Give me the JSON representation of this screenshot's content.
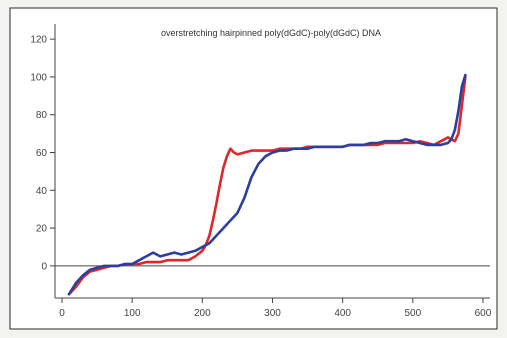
{
  "chart_data": {
    "type": "line",
    "title": "overstretching hairpinned poly(dGdC)-poly(dGdC) DNA",
    "xlabel": "",
    "ylabel": "",
    "xlim": [
      -10,
      610
    ],
    "ylim": [
      -17,
      128
    ],
    "x_ticks": [
      0,
      100,
      200,
      300,
      400,
      500,
      600
    ],
    "y_ticks": [
      0,
      20,
      40,
      60,
      80,
      100,
      120
    ],
    "x_tick_labels": [
      "0",
      "100",
      "200",
      "300",
      "400",
      "500",
      "600"
    ],
    "y_tick_labels": [
      "0",
      "20",
      "40",
      "60",
      "80",
      "100",
      "120"
    ],
    "reference_line_y": 0,
    "grid": false,
    "legend": "none",
    "series": [
      {
        "color": "#e0262a",
        "x": [
          10,
          20,
          30,
          40,
          50,
          60,
          70,
          80,
          90,
          100,
          110,
          120,
          130,
          140,
          150,
          160,
          170,
          180,
          190,
          200,
          205,
          210,
          215,
          220,
          225,
          230,
          235,
          240,
          245,
          250,
          260,
          270,
          280,
          290,
          300,
          310,
          320,
          330,
          340,
          350,
          360,
          370,
          380,
          390,
          400,
          410,
          420,
          430,
          440,
          450,
          460,
          470,
          480,
          490,
          500,
          510,
          520,
          530,
          540,
          545,
          550,
          555,
          560,
          565,
          570,
          575
        ],
        "y": [
          -15,
          -11,
          -6,
          -3,
          -2,
          -1,
          0,
          0,
          1,
          1,
          1,
          2,
          2,
          2,
          3,
          3,
          3,
          3,
          5,
          8,
          11,
          16,
          24,
          33,
          43,
          52,
          58,
          62,
          60,
          59,
          60,
          61,
          61,
          61,
          61,
          62,
          62,
          62,
          62,
          63,
          63,
          63,
          63,
          63,
          63,
          64,
          64,
          64,
          64,
          64,
          65,
          65,
          65,
          65,
          65,
          66,
          65,
          64,
          66,
          67,
          68,
          67,
          66,
          70,
          85,
          100
        ]
      },
      {
        "color": "#2a3f9e",
        "x": [
          10,
          20,
          30,
          40,
          50,
          60,
          70,
          80,
          90,
          100,
          110,
          120,
          130,
          140,
          150,
          160,
          170,
          180,
          190,
          200,
          210,
          220,
          230,
          240,
          250,
          260,
          270,
          280,
          290,
          300,
          310,
          320,
          330,
          340,
          350,
          360,
          370,
          380,
          390,
          400,
          410,
          420,
          430,
          440,
          450,
          460,
          470,
          480,
          490,
          500,
          510,
          520,
          530,
          540,
          550,
          555,
          560,
          565,
          570,
          575
        ],
        "y": [
          -15,
          -9,
          -5,
          -2,
          -1,
          0,
          0,
          0,
          1,
          1,
          3,
          5,
          7,
          5,
          6,
          7,
          6,
          7,
          8,
          10,
          12,
          16,
          20,
          24,
          28,
          36,
          47,
          54,
          58,
          60,
          61,
          61,
          62,
          62,
          62,
          63,
          63,
          63,
          63,
          63,
          64,
          64,
          64,
          65,
          65,
          66,
          66,
          66,
          67,
          66,
          65,
          64,
          64,
          64,
          65,
          67,
          72,
          82,
          95,
          101
        ]
      }
    ]
  }
}
